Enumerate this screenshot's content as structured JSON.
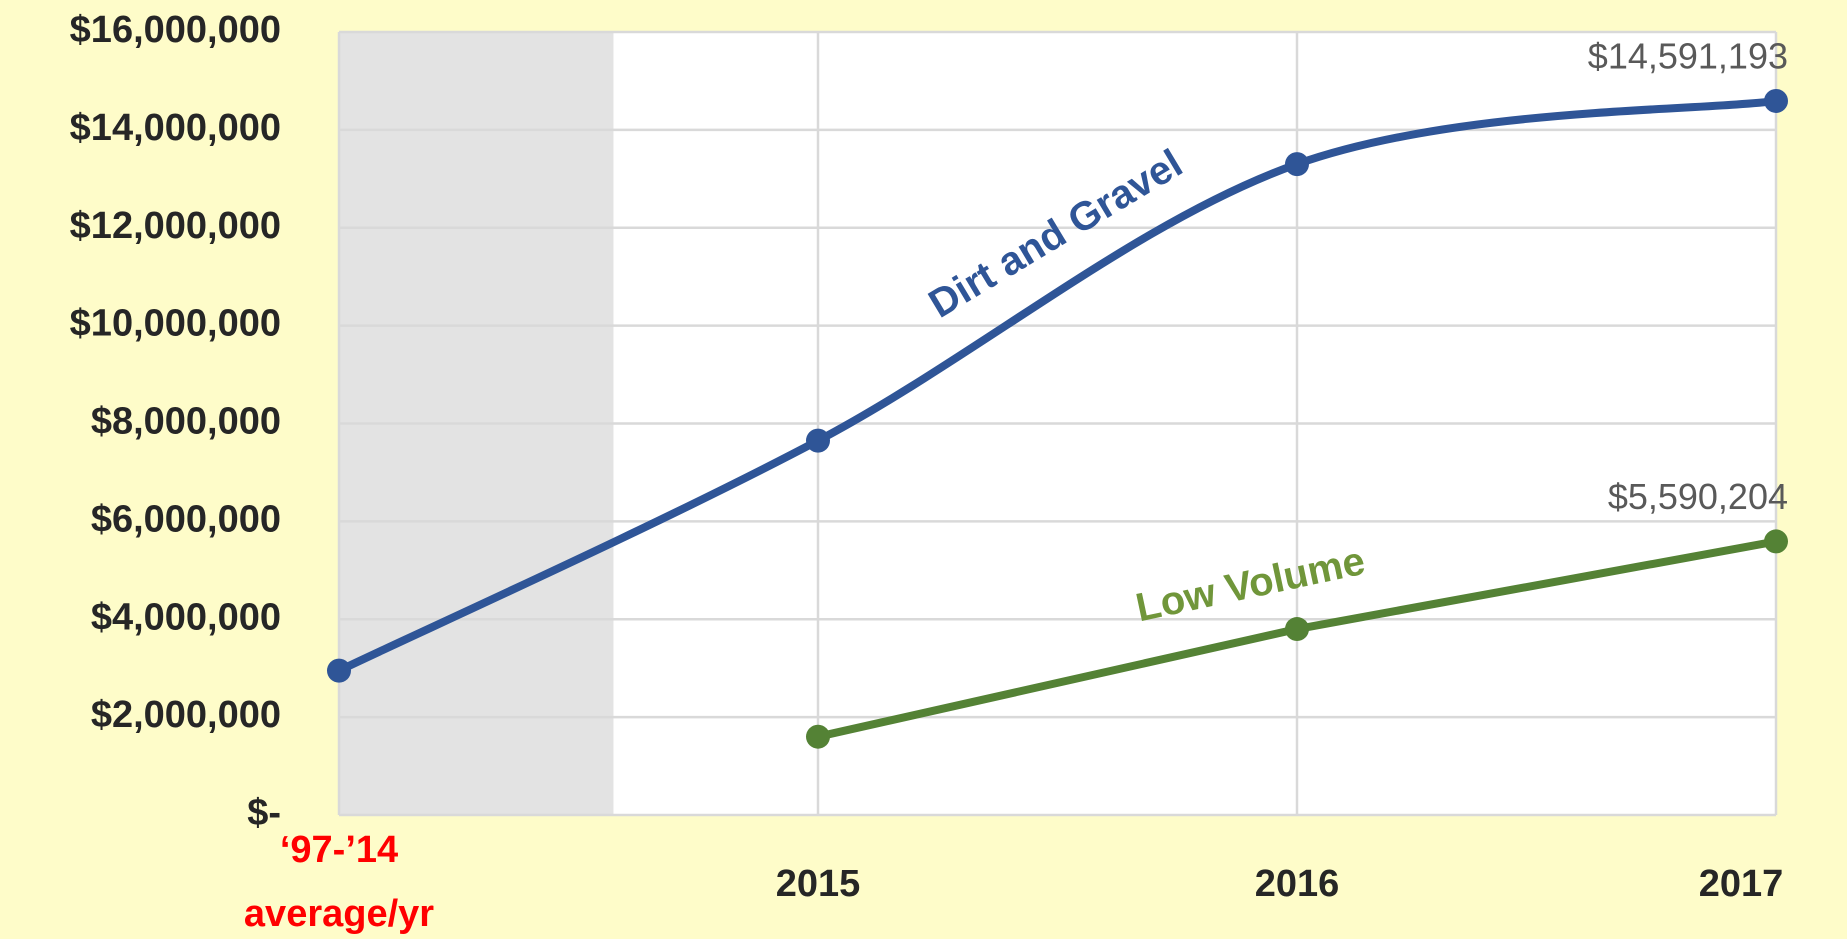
{
  "chart_data": {
    "type": "line",
    "categories": [
      "‘97-’14 average/yr",
      "2015",
      "2016",
      "2017"
    ],
    "category_label_colors": [
      "#ff0000",
      "#262626",
      "#262626",
      "#262626"
    ],
    "series": [
      {
        "name": "Dirt and Gravel",
        "color": "#2f5597",
        "smooth": true,
        "values": [
          2950000,
          7650000,
          13300000,
          14591193
        ],
        "value_labels": [
          null,
          null,
          null,
          "$14,591,193"
        ]
      },
      {
        "name": "Low Volume",
        "color": "#548235",
        "label_color": "#70963a",
        "smooth": false,
        "values": [
          null,
          1600000,
          3800000,
          5590204
        ],
        "value_labels": [
          null,
          null,
          null,
          "$5,590,204"
        ]
      }
    ],
    "ylim": [
      0,
      16000000
    ],
    "yticks": [
      {
        "value": 0,
        "label": "$-"
      },
      {
        "value": 2000000,
        "label": "$2,000,000"
      },
      {
        "value": 4000000,
        "label": "$4,000,000"
      },
      {
        "value": 6000000,
        "label": "$6,000,000"
      },
      {
        "value": 8000000,
        "label": "$8,000,000"
      },
      {
        "value": 10000000,
        "label": "$10,000,000"
      },
      {
        "value": 12000000,
        "label": "$12,000,000"
      },
      {
        "value": 14000000,
        "label": "$14,000,000"
      },
      {
        "value": 16000000,
        "label": "$16,000,000"
      }
    ],
    "grid": true
  }
}
